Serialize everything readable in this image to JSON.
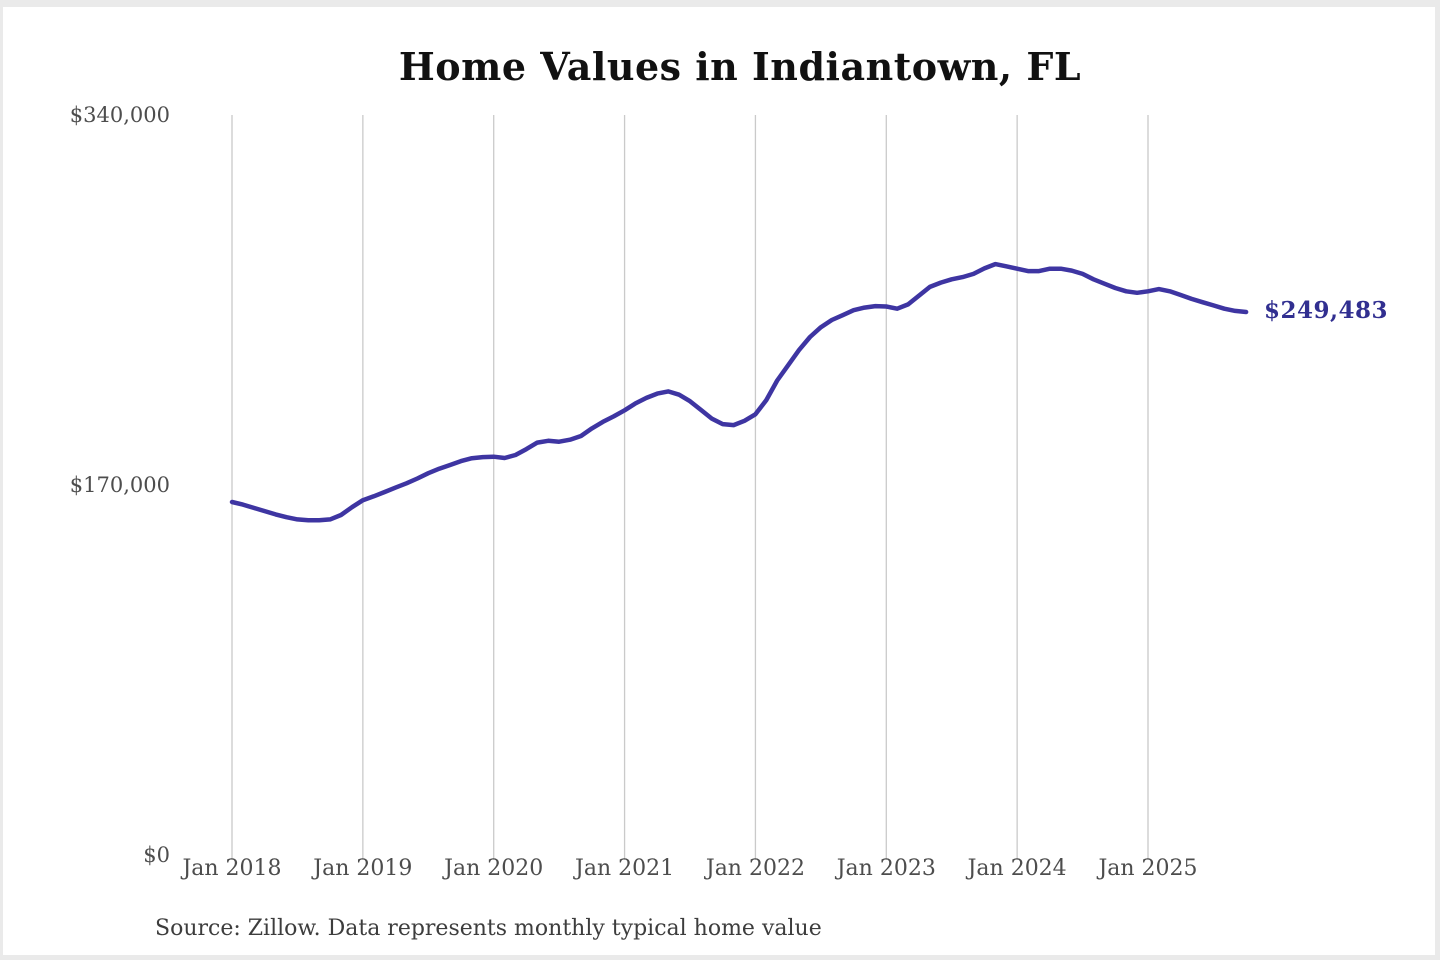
{
  "page": {
    "background": "#ffffff",
    "edge_strip_color": "#eaeaea"
  },
  "header": {
    "title": "Home Values in Indiantown, FL"
  },
  "annotations": {
    "latest_value_label": "$249,483",
    "source_note": "Source: Zillow. Data represents monthly typical home value"
  },
  "colors": {
    "line": "#3e35a2",
    "latest_label": "#312f90",
    "gridline": "#cacaca",
    "title_text": "#111111",
    "axis_text": "#4d4d4d",
    "source_text": "#3d3d3d"
  },
  "chart_data": {
    "type": "line",
    "title": "Home Values in Indiantown, FL",
    "series_name": "Monthly typical home value",
    "frequency": "monthly",
    "x_start": "Jan 2018",
    "x_end": "Oct 2025",
    "ylim": [
      0,
      340000
    ],
    "grid": "vertical-only",
    "legend": "none",
    "latest_value": 249483,
    "y_ticks": [
      {
        "label": "$340,000",
        "value": 340000
      },
      {
        "label": "$170,000",
        "value": 170000
      },
      {
        "label": "$0",
        "value": 0
      }
    ],
    "x_ticks": [
      {
        "label": "Jan 2018",
        "month_index": 0
      },
      {
        "label": "Jan 2019",
        "month_index": 12
      },
      {
        "label": "Jan 2020",
        "month_index": 24
      },
      {
        "label": "Jan 2021",
        "month_index": 36
      },
      {
        "label": "Jan 2022",
        "month_index": 48
      },
      {
        "label": "Jan 2023",
        "month_index": 60
      },
      {
        "label": "Jan 2024",
        "month_index": 72
      },
      {
        "label": "Jan 2025",
        "month_index": 84
      }
    ],
    "values": [
      162200,
      161000,
      159500,
      158000,
      156500,
      155200,
      154200,
      153800,
      153800,
      154200,
      156200,
      159800,
      163000,
      164800,
      166800,
      168800,
      170800,
      173000,
      175400,
      177500,
      179200,
      181000,
      182300,
      182800,
      183000,
      182400,
      183800,
      186500,
      189500,
      190300,
      189900,
      190800,
      192500,
      196000,
      199000,
      201500,
      204300,
      207500,
      210000,
      212000,
      213000,
      211500,
      208500,
      204500,
      200500,
      198000,
      197500,
      199500,
      202500,
      209000,
      218000,
      225000,
      232000,
      238000,
      242500,
      245800,
      248000,
      250300,
      251500,
      252200,
      252000,
      251000,
      253000,
      257000,
      261000,
      263000,
      264500,
      265500,
      267000,
      269500,
      271500,
      270500,
      269400,
      268300,
      268300,
      269400,
      269400,
      268500,
      267000,
      264500,
      262500,
      260500,
      259000,
      258300,
      259000,
      260000,
      259000,
      257300,
      255500,
      254000,
      252500,
      251000,
      250000,
      249483
    ]
  }
}
